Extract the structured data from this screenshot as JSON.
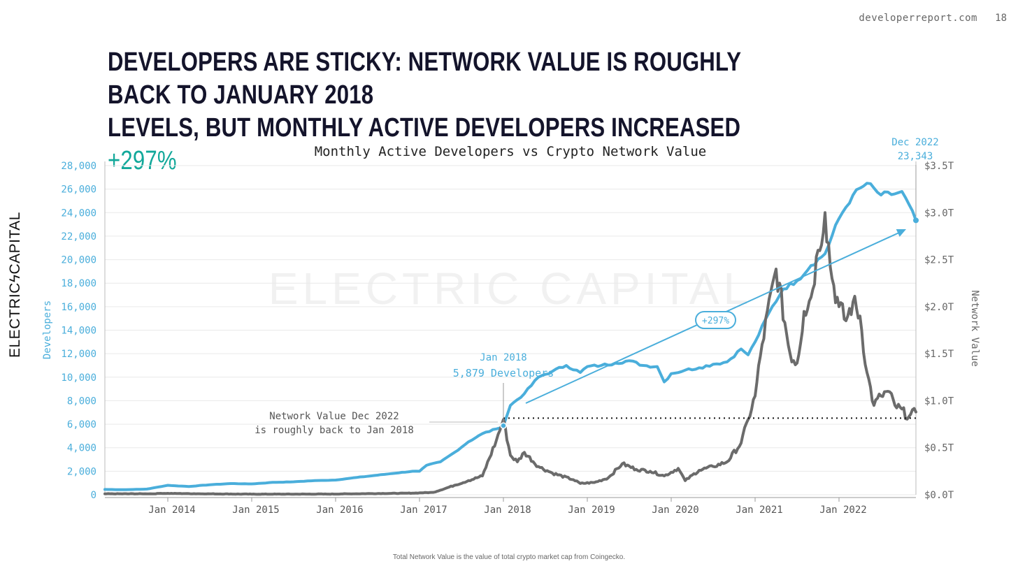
{
  "header": {
    "site": "developerreport.com",
    "page_number": "18",
    "title_line1": "DEVELOPERS ARE STICKY: NETWORK VALUE IS ROUGHLY BACK TO JANUARY 2018",
    "title_line2": "LEVELS, BUT MONTHLY ACTIVE DEVELOPERS INCREASED",
    "title_highlight": "+297%"
  },
  "brand": "ELECTRICϟCAPITAL",
  "watermark": "ELECTRIC CAPITAL",
  "footnote": "Total Network Value is the value of total crypto market cap from Coingecko.",
  "colors": {
    "developers": "#4aaedb",
    "network_value": "#6b6b6b",
    "accent": "#12a89a"
  },
  "chart_data": {
    "type": "line",
    "title": "Monthly Active Developers vs Crypto Network Value",
    "ylabel_left": "Developers",
    "ylabel_right": "Network Value",
    "xlim": [
      "2013-04",
      "2022-12"
    ],
    "ylim_left": [
      0,
      28000
    ],
    "ylim_right": [
      0,
      3.5
    ],
    "x_ticks": [
      "Jan 2014",
      "Jan 2015",
      "Jan 2016",
      "Jan 2017",
      "Jan 2018",
      "Jan 2019",
      "Jan 2020",
      "Jan 2021",
      "Jan 2022"
    ],
    "y_ticks_left": [
      "0",
      "2,000",
      "4,000",
      "6,000",
      "8,000",
      "10,000",
      "12,000",
      "14,000",
      "16,000",
      "18,000",
      "20,000",
      "22,000",
      "24,000",
      "26,000",
      "28,000"
    ],
    "y_ticks_right": [
      "$0.0T",
      "$0.5T",
      "$1.0T",
      "$1.5T",
      "$2.0T",
      "$2.5T",
      "$3.0T",
      "$3.5T"
    ],
    "grid": true,
    "series": [
      {
        "name": "Developers",
        "axis": "left",
        "points": [
          [
            "2013-04",
            450
          ],
          [
            "2013-07",
            430
          ],
          [
            "2013-10",
            480
          ],
          [
            "2014-01",
            800
          ],
          [
            "2014-04",
            700
          ],
          [
            "2014-07",
            850
          ],
          [
            "2014-10",
            950
          ],
          [
            "2015-01",
            920
          ],
          [
            "2015-04",
            1050
          ],
          [
            "2015-07",
            1100
          ],
          [
            "2015-10",
            1200
          ],
          [
            "2016-01",
            1250
          ],
          [
            "2016-03",
            1400
          ],
          [
            "2016-06",
            1600
          ],
          [
            "2016-09",
            1800
          ],
          [
            "2016-12",
            2000
          ],
          [
            "2017-01",
            2000
          ],
          [
            "2017-02",
            2500
          ],
          [
            "2017-04",
            2800
          ],
          [
            "2017-06",
            3600
          ],
          [
            "2017-08",
            4500
          ],
          [
            "2017-10",
            5200
          ],
          [
            "2017-12",
            5600
          ],
          [
            "2018-01",
            5879
          ],
          [
            "2018-02",
            7600
          ],
          [
            "2018-04",
            8600
          ],
          [
            "2018-06",
            10000
          ],
          [
            "2018-08",
            10500
          ],
          [
            "2018-10",
            11000
          ],
          [
            "2018-12",
            10400
          ],
          [
            "2019-01",
            10900
          ],
          [
            "2019-03",
            11000
          ],
          [
            "2019-05",
            11200
          ],
          [
            "2019-07",
            11400
          ],
          [
            "2019-09",
            11000
          ],
          [
            "2019-11",
            10900
          ],
          [
            "2019-12",
            9600
          ],
          [
            "2020-01",
            10300
          ],
          [
            "2020-03",
            10600
          ],
          [
            "2020-05",
            10800
          ],
          [
            "2020-07",
            11100
          ],
          [
            "2020-09",
            11300
          ],
          [
            "2020-11",
            12400
          ],
          [
            "2020-12",
            11900
          ],
          [
            "2021-01",
            13000
          ],
          [
            "2021-03",
            15500
          ],
          [
            "2021-05",
            17500
          ],
          [
            "2021-07",
            18200
          ],
          [
            "2021-09",
            19500
          ],
          [
            "2021-11",
            20500
          ],
          [
            "2022-01",
            23500
          ],
          [
            "2022-03",
            25500
          ],
          [
            "2022-05",
            26500
          ],
          [
            "2022-07",
            25500
          ],
          [
            "2022-09",
            25600
          ],
          [
            "2022-10",
            25800
          ],
          [
            "2022-12",
            23343
          ]
        ]
      },
      {
        "name": "Network Value",
        "axis": "right",
        "points": [
          [
            "2013-04",
            0.01
          ],
          [
            "2013-11",
            0.01
          ],
          [
            "2013-12",
            0.015
          ],
          [
            "2014-06",
            0.01
          ],
          [
            "2015-01",
            0.006
          ],
          [
            "2015-12",
            0.007
          ],
          [
            "2016-06",
            0.012
          ],
          [
            "2016-12",
            0.017
          ],
          [
            "2017-03",
            0.025
          ],
          [
            "2017-06",
            0.1
          ],
          [
            "2017-08",
            0.15
          ],
          [
            "2017-10",
            0.2
          ],
          [
            "2017-12",
            0.58
          ],
          [
            "2018-01",
            0.8
          ],
          [
            "2018-02",
            0.42
          ],
          [
            "2018-03",
            0.35
          ],
          [
            "2018-04",
            0.45
          ],
          [
            "2018-06",
            0.3
          ],
          [
            "2018-08",
            0.23
          ],
          [
            "2018-11",
            0.16
          ],
          [
            "2018-12",
            0.12
          ],
          [
            "2019-02",
            0.13
          ],
          [
            "2019-04",
            0.18
          ],
          [
            "2019-06",
            0.33
          ],
          [
            "2019-08",
            0.27
          ],
          [
            "2019-10",
            0.25
          ],
          [
            "2019-12",
            0.2
          ],
          [
            "2020-02",
            0.28
          ],
          [
            "2020-03",
            0.15
          ],
          [
            "2020-05",
            0.26
          ],
          [
            "2020-07",
            0.3
          ],
          [
            "2020-09",
            0.35
          ],
          [
            "2020-11",
            0.55
          ],
          [
            "2020-12",
            0.8
          ],
          [
            "2021-01",
            1.05
          ],
          [
            "2021-02",
            1.6
          ],
          [
            "2021-04",
            2.4
          ],
          [
            "2021-06",
            1.5
          ],
          [
            "2021-07",
            1.4
          ],
          [
            "2021-08",
            1.95
          ],
          [
            "2021-09",
            2.1
          ],
          [
            "2021-10",
            2.6
          ],
          [
            "2021-11",
            3.0
          ],
          [
            "2021-12",
            2.3
          ],
          [
            "2022-01",
            2.0
          ],
          [
            "2022-02",
            1.85
          ],
          [
            "2022-03",
            2.05
          ],
          [
            "2022-04",
            1.9
          ],
          [
            "2022-05",
            1.3
          ],
          [
            "2022-06",
            0.95
          ],
          [
            "2022-07",
            1.05
          ],
          [
            "2022-08",
            1.1
          ],
          [
            "2022-09",
            0.95
          ],
          [
            "2022-11",
            0.83
          ],
          [
            "2022-12",
            0.88
          ]
        ]
      }
    ],
    "annotations": [
      {
        "label_line1": "Jan 2018",
        "label_line2": "5,879 Developers",
        "x": "2018-01",
        "y": 5879
      },
      {
        "label_line1": "Dec 2022",
        "label_line2": "23,343",
        "x": "2022-12",
        "y": 23343
      },
      {
        "label_line1": "Network Value Dec 2022",
        "label_line2": "is roughly back to Jan 2018"
      },
      {
        "label": "+297%"
      }
    ]
  }
}
